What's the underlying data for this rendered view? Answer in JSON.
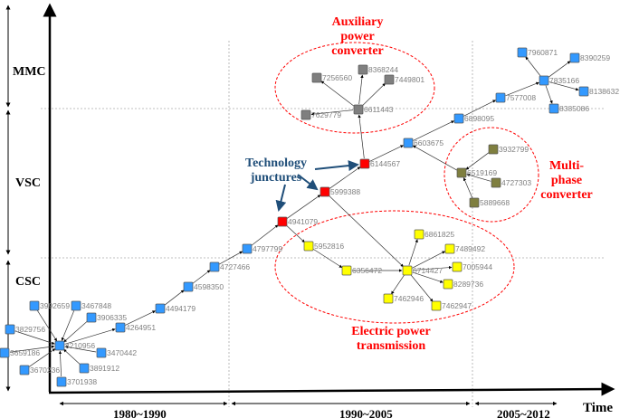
{
  "categories": [
    "MMC",
    "VSC",
    "CSC"
  ],
  "periods": [
    "1980~1990",
    "1990~2005",
    "2005~2012"
  ],
  "time_label": "Time",
  "annotations": {
    "auxiliary": [
      "Auxiliary",
      "power",
      "converter"
    ],
    "multiphase": [
      "Multi-",
      "phase",
      "converter"
    ],
    "electric": [
      "Electric power",
      "transmission"
    ],
    "junctures": [
      "Technology",
      "junctures"
    ]
  },
  "colors": {
    "csc_vsc_blue": "#3399ff",
    "juncture_red": "#ff0000",
    "electric_yellow": "#ffff00",
    "auxiliary_gray": "#7f7f7f",
    "multiphase_olive": "#7f7f3f",
    "annotation_red": "#ff0000",
    "annotation_blue": "#1f4e79"
  },
  "nodes": [
    {
      "id": "3992659",
      "group": "blue"
    },
    {
      "id": "3467848",
      "group": "blue"
    },
    {
      "id": "3906335",
      "group": "blue"
    },
    {
      "id": "3829756",
      "group": "blue"
    },
    {
      "id": "4210956",
      "group": "blue"
    },
    {
      "id": "3659186",
      "group": "blue"
    },
    {
      "id": "3470442",
      "group": "blue"
    },
    {
      "id": "3670236",
      "group": "blue"
    },
    {
      "id": "3891912",
      "group": "blue"
    },
    {
      "id": "3701938",
      "group": "blue"
    },
    {
      "id": "4264951",
      "group": "blue"
    },
    {
      "id": "4494179",
      "group": "blue"
    },
    {
      "id": "4598350",
      "group": "blue"
    },
    {
      "id": "4727466",
      "group": "blue"
    },
    {
      "id": "4797799",
      "group": "blue"
    },
    {
      "id": "4941079",
      "group": "red"
    },
    {
      "id": "5999388",
      "group": "red"
    },
    {
      "id": "6144567",
      "group": "red"
    },
    {
      "id": "5952816",
      "group": "yellow"
    },
    {
      "id": "6356472",
      "group": "yellow"
    },
    {
      "id": "6714427",
      "group": "yellow"
    },
    {
      "id": "6861825",
      "group": "yellow"
    },
    {
      "id": "7489492",
      "group": "yellow"
    },
    {
      "id": "7005944",
      "group": "yellow"
    },
    {
      "id": "8289736",
      "group": "yellow"
    },
    {
      "id": "7462946",
      "group": "yellow"
    },
    {
      "id": "7462947",
      "group": "yellow"
    },
    {
      "id": "6611443",
      "group": "gray"
    },
    {
      "id": "7256560",
      "group": "gray"
    },
    {
      "id": "8368244",
      "group": "gray"
    },
    {
      "id": "7449801",
      "group": "gray"
    },
    {
      "id": "7629779",
      "group": "gray"
    },
    {
      "id": "6603675",
      "group": "blue"
    },
    {
      "id": "6898095",
      "group": "blue"
    },
    {
      "id": "7577008",
      "group": "blue"
    },
    {
      "id": "7835166",
      "group": "blue"
    },
    {
      "id": "7960871",
      "group": "blue"
    },
    {
      "id": "8390259",
      "group": "blue"
    },
    {
      "id": "8138632",
      "group": "blue"
    },
    {
      "id": "8385086",
      "group": "blue"
    },
    {
      "id": "6519169",
      "group": "olive"
    },
    {
      "id": "3932799",
      "group": "olive"
    },
    {
      "id": "4727303",
      "group": "olive"
    },
    {
      "id": "5889668",
      "group": "olive"
    }
  ],
  "edges": [
    [
      "3992659",
      "4210956"
    ],
    [
      "3467848",
      "4210956"
    ],
    [
      "3906335",
      "4210956"
    ],
    [
      "3829756",
      "4210956"
    ],
    [
      "3659186",
      "4210956"
    ],
    [
      "3470442",
      "4210956"
    ],
    [
      "3670236",
      "4210956"
    ],
    [
      "3891912",
      "4210956"
    ],
    [
      "3701938",
      "4210956"
    ],
    [
      "4210956",
      "4264951"
    ],
    [
      "4264951",
      "4494179"
    ],
    [
      "4494179",
      "4598350"
    ],
    [
      "4598350",
      "4727466"
    ],
    [
      "4727466",
      "4797799"
    ],
    [
      "4797799",
      "4941079"
    ],
    [
      "4941079",
      "5999388"
    ],
    [
      "5999388",
      "6144567"
    ],
    [
      "4941079",
      "5952816"
    ],
    [
      "5952816",
      "6356472"
    ],
    [
      "6356472",
      "6714427"
    ],
    [
      "5999388",
      "6714427"
    ],
    [
      "6714427",
      "6861825"
    ],
    [
      "6714427",
      "7489492"
    ],
    [
      "6714427",
      "7005944"
    ],
    [
      "6714427",
      "8289736"
    ],
    [
      "6714427",
      "7462946"
    ],
    [
      "6714427",
      "7462947"
    ],
    [
      "6144567",
      "6611443"
    ],
    [
      "6611443",
      "7256560"
    ],
    [
      "6611443",
      "8368244"
    ],
    [
      "6611443",
      "7449801"
    ],
    [
      "6611443",
      "7629779"
    ],
    [
      "6144567",
      "6603675"
    ],
    [
      "6603675",
      "6898095"
    ],
    [
      "6898095",
      "7577008"
    ],
    [
      "7577008",
      "7835166"
    ],
    [
      "7835166",
      "7960871"
    ],
    [
      "7835166",
      "8390259"
    ],
    [
      "7835166",
      "8138632"
    ],
    [
      "7835166",
      "8385086"
    ],
    [
      "6519169",
      "6603675"
    ],
    [
      "5889668",
      "6519169"
    ],
    [
      "3932799",
      "6519169"
    ],
    [
      "4727303",
      "6519169"
    ]
  ]
}
